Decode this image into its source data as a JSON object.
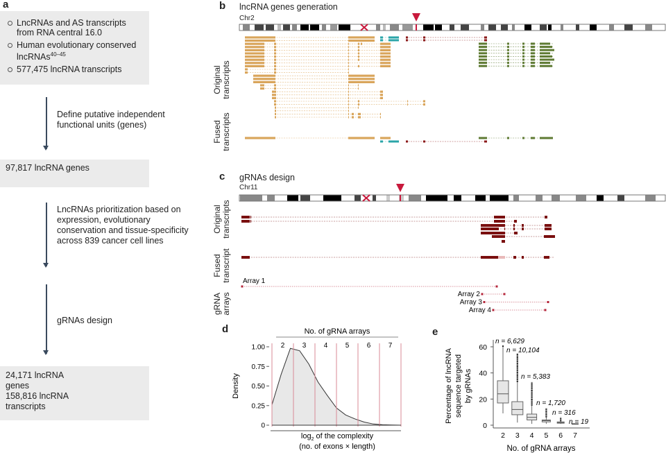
{
  "panel_a": {
    "label": "a",
    "box1": [
      "LncRNAs and AS transcripts from RNA central 16.0",
      "Human evolutionary conserved lncRNAs",
      "577,475 lncRNA transcripts"
    ],
    "box1_superscript": "40–45",
    "step1": "Define putative independent functional units (genes)",
    "box2": "97,817 lncRNA genes",
    "step2": "LncRNAs prioritization based on expression, evolutionary conservation and tissue-specificity across 839 cancer cell lines",
    "step3": "gRNAs design",
    "box4": {
      "genes": "24,171 lncRNA genes",
      "transcripts": "158,816 lncRNA transcripts"
    }
  },
  "panel_b": {
    "label": "b",
    "title": "lncRNA genes generation",
    "chromosome": "Chr2",
    "row_labels": [
      "Original transcripts",
      "Fused transcripts"
    ],
    "colors": {
      "gene1": "#d9a55b",
      "gene2": "#2aa5a8",
      "gene3": "#8b1a1a",
      "gene4": "#5e7a32",
      "marker": "#c8193c"
    }
  },
  "panel_c": {
    "label": "c",
    "title": "gRNAs design",
    "chromosome": "Chr11",
    "row_labels": [
      "Original transcripts",
      "Fused transcript",
      "gRNA arrays"
    ],
    "arrays": [
      "Array 1",
      "Array 2",
      "Array 3",
      "Array 4"
    ],
    "colors": {
      "transcript": "#7a0f0f",
      "array": "#b5263a"
    }
  },
  "chart_data": [
    {
      "panel": "d",
      "type": "area",
      "title": "No. of gRNA arrays",
      "xlabel": "log2 of the complexity",
      "xlabel_sub": "(no. of exons × length)",
      "ylabel": "Density",
      "yticks": [
        "0",
        "0.25",
        "0.50",
        "0.75",
        "1.00"
      ],
      "ylim": [
        0,
        1
      ],
      "bins": [
        "2",
        "3",
        "4",
        "5",
        "6",
        "7"
      ],
      "density": [
        0.26,
        0.65,
        0.98,
        0.95,
        0.78,
        0.55,
        0.38,
        0.22,
        0.13,
        0.08,
        0.04,
        0.015,
        0.005,
        0.002,
        0
      ]
    },
    {
      "panel": "e",
      "label": "e",
      "type": "box",
      "xlabel": "No. of gRNA arrays",
      "ylabel": [
        "Percentage of lncRNA",
        "sequence targeted",
        "by gRNAs"
      ],
      "yticks": [
        "0",
        "20",
        "40",
        "60"
      ],
      "ylim": [
        0,
        62
      ],
      "categories": [
        "2",
        "3",
        "4",
        "5",
        "6",
        "7"
      ],
      "n_labels": [
        "n = 6,629",
        "n = 10,104",
        "n = 5,383",
        "n = 1,720",
        "n = 316",
        "n = 19"
      ],
      "boxes": [
        {
          "lo": 9,
          "q1": 17,
          "med": 24,
          "q3": 34,
          "hi": 60,
          "out_max": 61
        },
        {
          "lo": 2,
          "q1": 8,
          "med": 12,
          "q3": 18,
          "hi": 33,
          "out_max": 55
        },
        {
          "lo": 1,
          "q1": 4,
          "med": 6,
          "q3": 8.5,
          "hi": 15,
          "out_max": 33
        },
        {
          "lo": 1,
          "q1": 2.5,
          "med": 3.5,
          "q3": 4,
          "hi": 6,
          "out_max": 13
        },
        {
          "lo": 1,
          "q1": 1.5,
          "med": 2,
          "q3": 2.5,
          "hi": 3,
          "out_max": 6
        },
        {
          "lo": 0.8,
          "q1": 1,
          "med": 1,
          "q3": 1.2,
          "hi": 1.3,
          "out_max": 1.3
        }
      ]
    }
  ]
}
